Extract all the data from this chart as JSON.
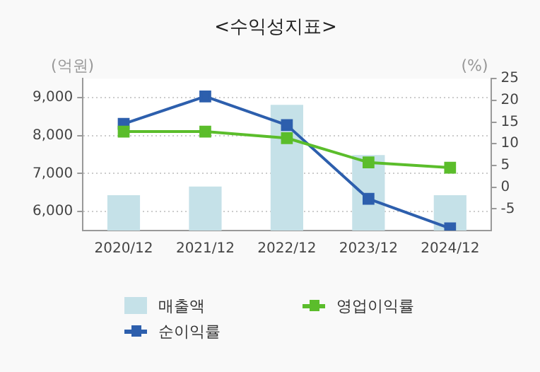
{
  "chart_data": {
    "type": "bar",
    "title": "<수익성지표>",
    "ylabel": "(억원)",
    "y2label": "(%)",
    "categories": [
      "2020/12",
      "2021/12",
      "2022/12",
      "2023/12",
      "2024/12"
    ],
    "series": [
      {
        "name": "매출액",
        "color": "#c5e1e8",
        "values": [
          6430,
          6660,
          8810,
          7490,
          6430
        ]
      },
      {
        "name": "영업이익률",
        "type": "line",
        "axis": "y2",
        "color": "#5bbd2b",
        "values": [
          12.8,
          12.8,
          11.3,
          5.7,
          4.5
        ]
      },
      {
        "name": "순이익률",
        "type": "line",
        "axis": "y2",
        "color": "#2d5fad",
        "values": [
          14.6,
          20.9,
          14.3,
          -2.7,
          -9.5
        ]
      }
    ],
    "ylim": [
      5500,
      9500
    ],
    "yticks": [
      {
        "value": 6000,
        "label": "6,000"
      },
      {
        "value": 7000,
        "label": "7,000"
      },
      {
        "value": 8000,
        "label": "8,000"
      },
      {
        "value": 9000,
        "label": "9,000"
      }
    ],
    "y2lim": [
      -10,
      25
    ],
    "y2ticks": [
      -5,
      0,
      5,
      10,
      15,
      20,
      25
    ],
    "grid": "y",
    "legend": "bottom",
    "marker": "square"
  }
}
